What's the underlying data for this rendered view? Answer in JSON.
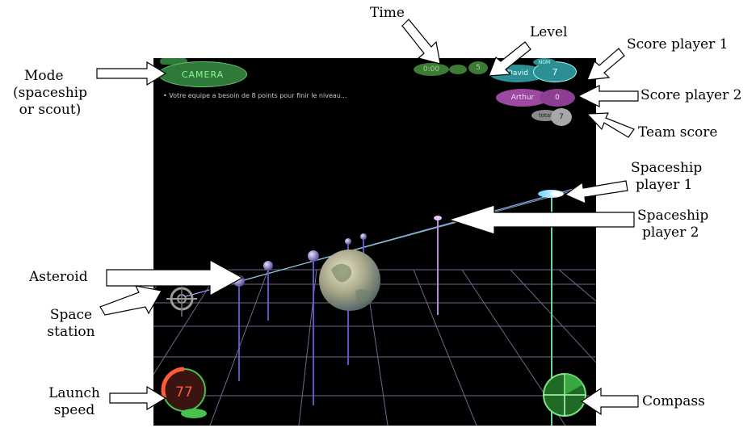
{
  "annotations": {
    "time": "Time",
    "level": "Level",
    "score_player_1": "Score player 1",
    "score_player_2": "Score player 2",
    "team_score": "Team score",
    "mode_line1": "Mode",
    "mode_line2": "(spaceship",
    "mode_line3": "or scout)",
    "spaceship_player_1_line1": "Spaceship",
    "spaceship_player_1_line2": "player 1",
    "spaceship_player_2_line1": "Spaceship",
    "spaceship_player_2_line2": "player 2",
    "asteroid": "Asteroid",
    "space_station_line1": "Space",
    "space_station_line2": "station",
    "launch_speed_line1": "Launch",
    "launch_speed_line2": "speed",
    "compass": "Compass"
  },
  "hud": {
    "mode": "CAMERA",
    "time": "0:00",
    "level": "5",
    "player1_name": "David",
    "player1_tag": "NOM",
    "player1_score": "7",
    "player2_name": "Arthur",
    "player2_score": "0",
    "team_label": "total",
    "team_score": "7",
    "message": "• Votre equipe a besoin de 8 points pour finir le niveau...",
    "launch_speed": "77"
  },
  "colors": {
    "grid": "#8f8fbf",
    "mode_green": "#2f7a3a",
    "player1_cyan": "#2b8f93",
    "player2_purple": "#9b4aa0",
    "team_gray": "#a8a8a8",
    "launch_red": "#ff5a3a",
    "compass_green": "#46c24e"
  }
}
